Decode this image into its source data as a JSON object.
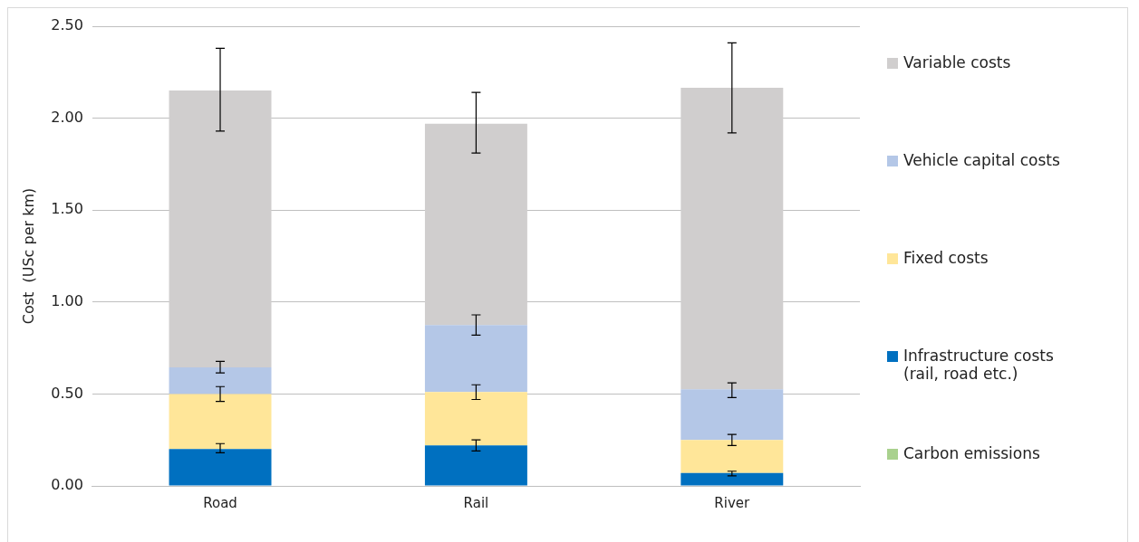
{
  "chart_data": {
    "type": "bar",
    "stacked": true,
    "ylabel": "Cost  (USc per km)",
    "categories": [
      "Road",
      "Rail",
      "River"
    ],
    "series": [
      {
        "name": "Carbon emissions",
        "color": "#a9d18e",
        "values": [
          0,
          0,
          0
        ]
      },
      {
        "name": "Infrastructure costs (rail, road etc.)",
        "color": "#0070c0",
        "values": [
          0.2,
          0.22,
          0.07
        ],
        "errors": [
          [
            0.18,
            0.23
          ],
          [
            0.19,
            0.25
          ],
          [
            0.055,
            0.08
          ]
        ]
      },
      {
        "name": "Fixed costs",
        "color": "#ffe699",
        "values": [
          0.3,
          0.29,
          0.18
        ],
        "errors": [
          [
            0.46,
            0.54
          ],
          [
            0.47,
            0.55
          ],
          [
            0.22,
            0.28
          ]
        ]
      },
      {
        "name": "Vehicle capital costs",
        "color": "#b4c7e7",
        "values": [
          0.145,
          0.365,
          0.275
        ],
        "errors": [
          [
            0.615,
            0.677
          ],
          [
            0.82,
            0.93
          ],
          [
            0.48,
            0.56
          ]
        ]
      },
      {
        "name": "Variable costs",
        "color": "#d0cece",
        "values": [
          1.505,
          1.095,
          1.64
        ],
        "errors": [
          [
            1.93,
            2.38
          ],
          [
            1.81,
            2.14
          ],
          [
            1.92,
            2.41
          ]
        ]
      }
    ],
    "ylim": [
      0,
      2.5
    ],
    "yticks": [
      {
        "value": 0,
        "label": "0.00"
      },
      {
        "value": 0.5,
        "label": "0.50"
      },
      {
        "value": 1,
        "label": "1.00"
      },
      {
        "value": 1.5,
        "label": "1.50"
      },
      {
        "value": 2,
        "label": "2.00"
      },
      {
        "value": 2.5,
        "label": "2.50"
      }
    ],
    "grid": "y",
    "legend": "right"
  }
}
